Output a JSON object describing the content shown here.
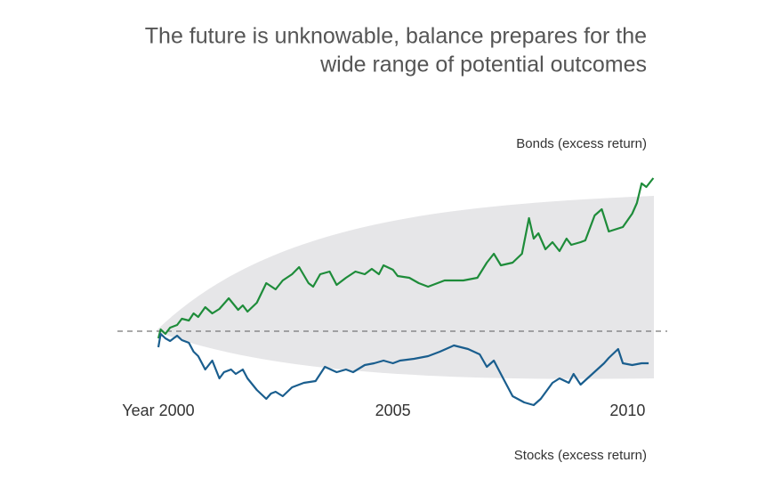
{
  "chart_data": {
    "type": "line",
    "title": [
      "The future is unknowable, balance prepares for the",
      "wide range of potential outcomes"
    ],
    "xlim": [
      2000,
      2010.6
    ],
    "xticks": [
      {
        "value": 2000,
        "label": "Year 2000"
      },
      2005,
      2010
    ],
    "ylim": [
      -60,
      100
    ],
    "series": [
      {
        "name": "Bonds (excess return)",
        "color": "#1e8c3a",
        "x": [
          2000.0,
          2000.05,
          2000.15,
          2000.25,
          2000.4,
          2000.5,
          2000.65,
          2000.75,
          2000.85,
          2001.0,
          2001.15,
          2001.3,
          2001.5,
          2001.7,
          2001.8,
          2001.9,
          2002.1,
          2002.3,
          2002.5,
          2002.65,
          2002.85,
          2003.0,
          2003.2,
          2003.3,
          2003.45,
          2003.65,
          2003.8,
          2004.0,
          2004.2,
          2004.4,
          2004.55,
          2004.7,
          2004.8,
          2005.0,
          2005.1,
          2005.35,
          2005.55,
          2005.75,
          2006.1,
          2006.5,
          2006.8,
          2007.0,
          2007.15,
          2007.3,
          2007.55,
          2007.75,
          2007.9,
          2008.0,
          2008.1,
          2008.25,
          2008.4,
          2008.55,
          2008.7,
          2008.8,
          2009.0,
          2009.1,
          2009.3,
          2009.45,
          2009.6,
          2009.9,
          2010.1,
          2010.2,
          2010.3,
          2010.4,
          2010.55
        ],
        "values": [
          -4,
          1,
          -1.5,
          2,
          3.5,
          7,
          6,
          10,
          8,
          13.5,
          10,
          12.5,
          18.5,
          12,
          14.5,
          11,
          16,
          27,
          23.5,
          28.5,
          32,
          36,
          27,
          25,
          32,
          33.5,
          26,
          30,
          33.5,
          32,
          35,
          32,
          37,
          34.5,
          31,
          30,
          27,
          25,
          28.5,
          28.5,
          30,
          38.5,
          43.5,
          37,
          38.5,
          43.5,
          63.5,
          52,
          55,
          46,
          50,
          45,
          52,
          48.5,
          50,
          51,
          65,
          68.5,
          56,
          58.5,
          66,
          72,
          83,
          81,
          86
        ]
      },
      {
        "name": "Stocks (excess return)",
        "color": "#1a5e8e",
        "x": [
          2000.0,
          2000.05,
          2000.15,
          2000.25,
          2000.4,
          2000.5,
          2000.65,
          2000.75,
          2000.85,
          2001.0,
          2001.15,
          2001.3,
          2001.4,
          2001.55,
          2001.65,
          2001.8,
          2001.9,
          2002.1,
          2002.3,
          2002.4,
          2002.5,
          2002.65,
          2002.85,
          2003.1,
          2003.35,
          2003.55,
          2003.8,
          2004.0,
          2004.15,
          2004.4,
          2004.6,
          2004.8,
          2005.0,
          2005.15,
          2005.45,
          2005.75,
          2006.0,
          2006.3,
          2006.6,
          2006.85,
          2007.0,
          2007.15,
          2007.35,
          2007.55,
          2007.8,
          2008.0,
          2008.15,
          2008.4,
          2008.55,
          2008.75,
          2008.85,
          2009.0,
          2009.25,
          2009.5,
          2009.6,
          2009.8,
          2009.9,
          2010.1,
          2010.3,
          2010.45
        ],
        "values": [
          -9,
          -1.5,
          -4,
          -5.5,
          -2.5,
          -5,
          -6.5,
          -11.5,
          -14,
          -21.5,
          -16.5,
          -26.5,
          -23,
          -21.5,
          -24,
          -21.5,
          -26.5,
          -33,
          -38,
          -35,
          -34,
          -36.5,
          -31.5,
          -29,
          -28,
          -20,
          -23,
          -21.5,
          -23,
          -19,
          -18,
          -16.5,
          -18,
          -16.5,
          -15.5,
          -14,
          -11.5,
          -8,
          -10,
          -13,
          -20,
          -16.5,
          -26.5,
          -36.5,
          -40,
          -41.5,
          -38,
          -29,
          -26.5,
          -29,
          -24,
          -30,
          -24,
          -18,
          -15,
          -10,
          -18,
          -19,
          -18,
          -18
        ]
      }
    ]
  }
}
